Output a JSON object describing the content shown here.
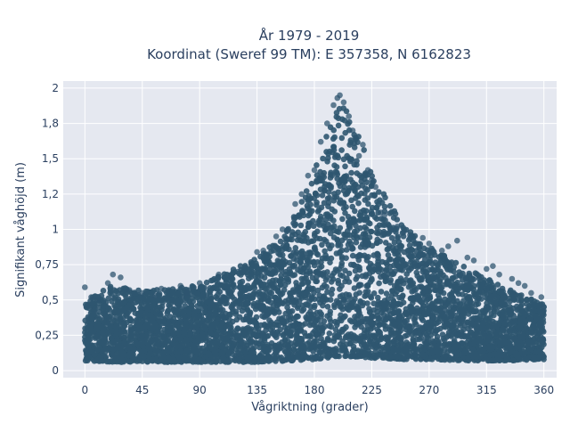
{
  "chart_data": {
    "type": "scatter",
    "title": "År 1979 - 2019",
    "subtitle": "Koordinat (Sweref 99 TM): E 357358, N 6162823",
    "xlabel": "Vågriktning (grader)",
    "ylabel": "Signifikant våghöjd (m)",
    "xlim": [
      -17,
      370
    ],
    "ylim": [
      -0.05,
      2.05
    ],
    "x_ticks": [
      0,
      45,
      90,
      135,
      180,
      225,
      270,
      315,
      360
    ],
    "x_tick_labels": [
      "0",
      "45",
      "90",
      "135",
      "180",
      "225",
      "270",
      "315",
      "360"
    ],
    "y_ticks": [
      0,
      0.25,
      0.5,
      0.75,
      1,
      1.25,
      1.5,
      1.75,
      2
    ],
    "y_tick_labels": [
      "0",
      "0,25",
      "0,5",
      "0,75",
      "1",
      "1,2",
      "1,5",
      "1,8",
      "2"
    ],
    "grid": true,
    "legend": "none",
    "marker_color": "#2f5670",
    "plot_bg_color": "#e5e8f0",
    "envelope": {
      "description_x": [
        0,
        20,
        45,
        90,
        135,
        160,
        180,
        190,
        200,
        210,
        225,
        250,
        270,
        300,
        330,
        360
      ],
      "min_wave_height": [
        0.07,
        0.06,
        0.06,
        0.06,
        0.06,
        0.07,
        0.08,
        0.09,
        0.1,
        0.1,
        0.09,
        0.08,
        0.08,
        0.07,
        0.07,
        0.08
      ],
      "max_wave_height": [
        0.5,
        0.62,
        0.58,
        0.62,
        0.82,
        1.05,
        1.45,
        1.75,
        1.95,
        1.85,
        1.45,
        1.05,
        0.9,
        0.75,
        0.6,
        0.48
      ]
    },
    "points": [
      [
        0,
        0.59
      ],
      [
        5,
        0.52
      ],
      [
        18,
        0.62
      ],
      [
        22,
        0.68
      ],
      [
        28,
        0.66
      ],
      [
        45,
        0.55
      ],
      [
        60,
        0.58
      ],
      [
        75,
        0.6
      ],
      [
        90,
        0.62
      ],
      [
        105,
        0.68
      ],
      [
        120,
        0.7
      ],
      [
        135,
        0.84
      ],
      [
        150,
        0.95
      ],
      [
        165,
        1.18
      ],
      [
        175,
        1.38
      ],
      [
        185,
        1.62
      ],
      [
        190,
        1.75
      ],
      [
        195,
        1.88
      ],
      [
        198,
        1.93
      ],
      [
        200,
        1.95
      ],
      [
        203,
        1.9
      ],
      [
        207,
        1.8
      ],
      [
        212,
        1.65
      ],
      [
        218,
        1.6
      ],
      [
        222,
        1.42
      ],
      [
        228,
        1.3
      ],
      [
        232,
        1.12
      ],
      [
        240,
        1.0
      ],
      [
        250,
        0.98
      ],
      [
        260,
        0.9
      ],
      [
        270,
        0.9
      ],
      [
        280,
        0.85
      ],
      [
        292,
        0.92
      ],
      [
        300,
        0.8
      ],
      [
        315,
        0.72
      ],
      [
        325,
        0.68
      ],
      [
        340,
        0.62
      ],
      [
        350,
        0.55
      ],
      [
        358,
        0.52
      ],
      [
        360,
        0.45
      ],
      [
        10,
        0.5
      ],
      [
        35,
        0.57
      ],
      [
        55,
        0.53
      ],
      [
        80,
        0.55
      ],
      [
        115,
        0.66
      ],
      [
        140,
        0.85
      ],
      [
        155,
        1.0
      ],
      [
        170,
        1.25
      ],
      [
        180,
        1.42
      ],
      [
        210,
        1.7
      ],
      [
        215,
        1.52
      ],
      [
        225,
        1.35
      ],
      [
        235,
        1.1
      ],
      [
        245,
        1.02
      ],
      [
        255,
        0.96
      ],
      [
        265,
        0.94
      ],
      [
        285,
        0.88
      ],
      [
        305,
        0.78
      ],
      [
        320,
        0.74
      ],
      [
        335,
        0.65
      ],
      [
        345,
        0.6
      ]
    ]
  }
}
